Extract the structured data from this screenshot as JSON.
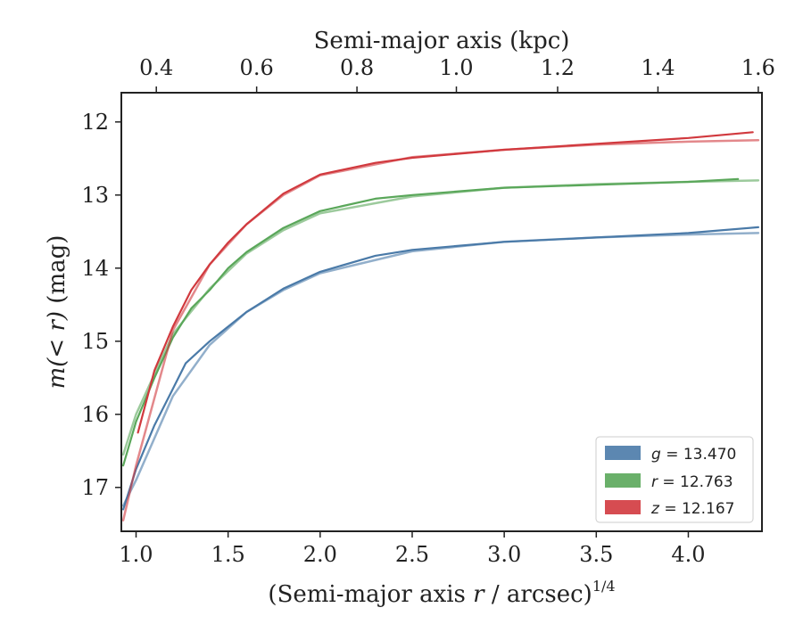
{
  "chart_data": {
    "type": "line",
    "xlabel": "(Semi-major axis",
    "xlabel_var": "r",
    "xlabel_unit": "/ arcsec)",
    "xlabel_sup": "1/4",
    "ylabel": "(mag)",
    "ylabel_math": "m(< r)",
    "top_xlabel": "Semi-major axis (kpc)",
    "xlim": [
      0.92,
      4.4
    ],
    "ylim": [
      17.6,
      11.6
    ],
    "y_inverted": true,
    "x_ticks": [
      1.0,
      1.5,
      2.0,
      2.5,
      3.0,
      3.5,
      4.0
    ],
    "x_tick_labels": [
      "1.0",
      "1.5",
      "2.0",
      "2.5",
      "3.0",
      "3.5",
      "4.0"
    ],
    "y_ticks": [
      12,
      13,
      14,
      15,
      16,
      17
    ],
    "y_tick_labels": [
      "12",
      "13",
      "14",
      "15",
      "16",
      "17"
    ],
    "top_ticks_kpc": [
      0.4,
      0.6,
      0.8,
      1.0,
      1.2,
      1.4,
      1.6
    ],
    "top_tick_labels": [
      "0.4",
      "0.6",
      "0.8",
      "1.0",
      "1.2",
      "1.4",
      "1.6"
    ],
    "top_tick_x_positions": [
      1.11,
      1.655,
      2.2,
      2.74,
      3.29,
      3.835,
      4.38
    ],
    "legend": {
      "placement": "lower-right",
      "entries": [
        {
          "band": "g",
          "label": "= 13.470",
          "color": "#4a7aa8"
        },
        {
          "band": "r",
          "label": "= 12.763",
          "color": "#5aa75a"
        },
        {
          "band": "z",
          "label": "= 12.167",
          "color": "#d1393e"
        }
      ]
    },
    "series": [
      {
        "name": "g",
        "color": "#4a7aa8",
        "data_x": [
          0.93,
          1.0,
          1.1,
          1.2,
          1.27,
          1.4,
          1.5,
          1.6,
          1.8,
          2.0,
          2.3,
          2.5,
          3.0,
          3.5,
          4.0,
          4.38
        ],
        "data_y": [
          17.3,
          16.75,
          16.15,
          15.65,
          15.3,
          15.0,
          14.8,
          14.6,
          14.28,
          14.05,
          13.83,
          13.75,
          13.64,
          13.58,
          13.52,
          13.44
        ],
        "model_x": [
          0.93,
          1.0,
          1.2,
          1.4,
          1.6,
          1.8,
          2.0,
          2.5,
          3.0,
          3.5,
          4.0,
          4.38
        ],
        "model_y": [
          17.25,
          16.9,
          15.75,
          15.05,
          14.6,
          14.3,
          14.07,
          13.77,
          13.64,
          13.58,
          13.54,
          13.52
        ]
      },
      {
        "name": "r",
        "color": "#5aa75a",
        "data_x": [
          0.93,
          1.0,
          1.1,
          1.2,
          1.3,
          1.4,
          1.5,
          1.6,
          1.8,
          2.0,
          2.3,
          2.5,
          3.0,
          3.5,
          4.0,
          4.27
        ],
        "data_y": [
          16.7,
          16.1,
          15.5,
          14.95,
          14.55,
          14.3,
          14.0,
          13.78,
          13.45,
          13.22,
          13.05,
          13.0,
          12.9,
          12.86,
          12.82,
          12.78
        ],
        "model_x": [
          0.93,
          1.0,
          1.2,
          1.4,
          1.6,
          1.8,
          2.0,
          2.5,
          3.0,
          3.5,
          4.0,
          4.38
        ],
        "model_y": [
          16.55,
          16.0,
          14.9,
          14.28,
          13.8,
          13.48,
          13.25,
          13.02,
          12.9,
          12.85,
          12.82,
          12.8
        ]
      },
      {
        "name": "z",
        "color": "#d1393e",
        "data_x": [
          1.01,
          1.1,
          1.2,
          1.3,
          1.4,
          1.5,
          1.6,
          1.8,
          2.0,
          2.3,
          2.5,
          3.0,
          3.5,
          4.0,
          4.35
        ],
        "data_y": [
          16.25,
          15.4,
          14.8,
          14.3,
          13.95,
          13.65,
          13.4,
          12.98,
          12.72,
          12.56,
          12.49,
          12.38,
          12.3,
          12.22,
          12.14
        ],
        "model_x": [
          0.93,
          1.0,
          1.2,
          1.4,
          1.6,
          1.8,
          2.0,
          2.5,
          3.0,
          3.5,
          4.0,
          4.38
        ],
        "model_y": [
          17.45,
          16.7,
          14.85,
          13.95,
          13.4,
          13.0,
          12.73,
          12.48,
          12.38,
          12.31,
          12.27,
          12.25
        ]
      }
    ]
  }
}
